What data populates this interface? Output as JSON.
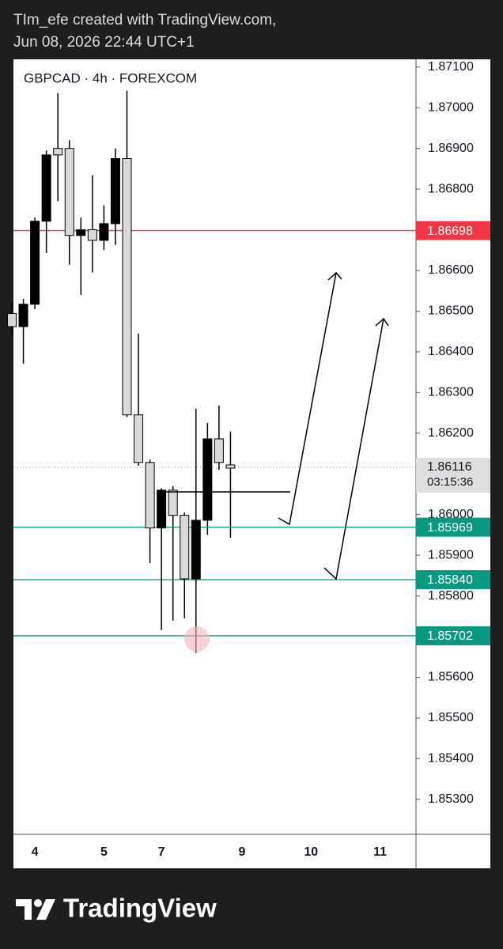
{
  "header": {
    "line1": "TIm_efe created with TradingView.com,",
    "line2": "Jun 08, 2026 22:44 UTC+1"
  },
  "chart_data": {
    "type": "candlestick",
    "title": "GBPCAD · 4h · FOREXCOM",
    "categories": [
      null,
      null,
      "4",
      null,
      null,
      null,
      null,
      null,
      "5",
      null,
      null,
      null,
      null,
      "7",
      null,
      null,
      null,
      null,
      null,
      null,
      "9",
      null,
      null,
      null,
      null,
      null,
      "10",
      null,
      null,
      null,
      null,
      null,
      "11"
    ],
    "open": [
      1.86494,
      1.86462,
      1.86517,
      1.86721,
      1.869,
      1.869,
      1.86686,
      1.867,
      1.86674,
      1.86715,
      1.86875,
      1.86245,
      1.86128,
      1.85967,
      1.8606,
      1.85998,
      1.85842,
      1.85986,
      1.86186,
      1.86122,
      null,
      null,
      null,
      null,
      null,
      null,
      null,
      null,
      null,
      null,
      null,
      null,
      null
    ],
    "high": [
      1.8652,
      1.8653,
      1.8673,
      1.86895,
      1.87036,
      1.8692,
      1.8673,
      1.86834,
      1.8676,
      1.869,
      1.87042,
      1.86445,
      1.86135,
      1.86065,
      1.8607,
      1.86005,
      1.8626,
      1.86225,
      1.86268,
      1.86204,
      null,
      null,
      null,
      null,
      null,
      null,
      null,
      null,
      null,
      null,
      null,
      null,
      null
    ],
    "low": [
      1.8644,
      1.86371,
      1.86505,
      1.86643,
      1.8677,
      1.86614,
      1.8654,
      1.86595,
      1.8665,
      1.86663,
      1.8624,
      1.8612,
      1.85881,
      1.85716,
      1.85739,
      1.85745,
      1.8566,
      1.8595,
      1.8611,
      1.85943,
      null,
      null,
      null,
      null,
      null,
      null,
      null,
      null,
      null,
      null,
      null,
      null,
      null
    ],
    "close": [
      1.86462,
      1.86517,
      1.86721,
      1.86884,
      1.86884,
      1.86686,
      1.867,
      1.86674,
      1.86715,
      1.86875,
      1.86245,
      1.86128,
      1.85967,
      1.8606,
      1.85998,
      1.85842,
      1.85986,
      1.86186,
      1.86128,
      1.86114,
      null,
      null,
      null,
      null,
      null,
      null,
      null,
      null,
      null,
      null,
      null,
      null,
      null
    ],
    "up_color": "#000000",
    "down_color": "#d9d9d9",
    "ylim": [
      1.85214,
      1.87119
    ],
    "yticks": [
      {
        "value": 1.871,
        "label": "1.87100"
      },
      {
        "value": 1.87,
        "label": "1.87000"
      },
      {
        "value": 1.869,
        "label": "1.86900"
      },
      {
        "value": 1.868,
        "label": "1.86800"
      },
      {
        "value": 1.866,
        "label": "1.86600"
      },
      {
        "value": 1.865,
        "label": "1.86500"
      },
      {
        "value": 1.864,
        "label": "1.86400"
      },
      {
        "value": 1.863,
        "label": "1.86300"
      },
      {
        "value": 1.862,
        "label": "1.86200"
      },
      {
        "value": 1.86,
        "label": "1.86000"
      },
      {
        "value": 1.859,
        "label": "1.85900"
      },
      {
        "value": 1.858,
        "label": "1.85800"
      },
      {
        "value": 1.856,
        "label": "1.85600"
      },
      {
        "value": 1.855,
        "label": "1.85500"
      },
      {
        "value": 1.854,
        "label": "1.85400"
      },
      {
        "value": 1.853,
        "label": "1.85300"
      }
    ],
    "price_lines": [
      {
        "value": 1.86698,
        "color": "#f23645"
      },
      {
        "value": 1.85969,
        "label": "1.85969",
        "color": "#089981"
      },
      {
        "value": 1.8584,
        "label": "1.85840",
        "color": "#089981"
      },
      {
        "value": 1.85702,
        "label": "1.85702",
        "color": "#089981"
      }
    ],
    "last_price": {
      "value": 1.86116,
      "countdown": "03:15:36"
    }
  },
  "footer": {
    "brand": "TradingView"
  }
}
